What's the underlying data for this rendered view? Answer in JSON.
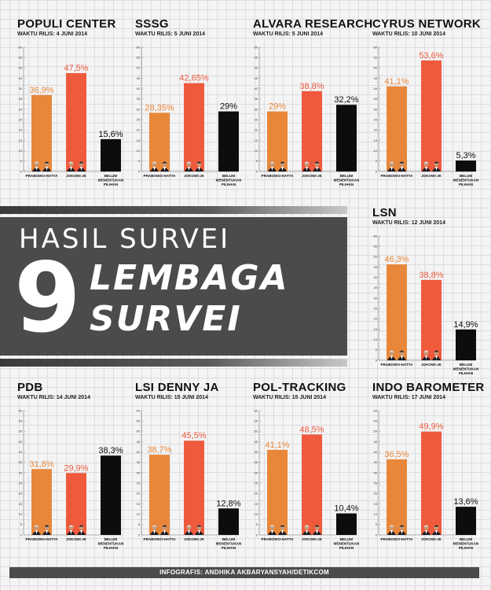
{
  "headline": {
    "line1": "HASIL SURVEI",
    "number": "9",
    "line2": "LEMBAGA",
    "line3": "SURVEI"
  },
  "footer": "INFOGRAFIS: ANDHIKA AKBARYANSYAH/DETIKCOM",
  "colors": {
    "prabowo": "#e8873a",
    "jokowi": "#ef5a3c",
    "undecided": "#0d0d0d",
    "label_prabowo": "#e8873a",
    "label_jokowi": "#ef5a3c",
    "banner": "#4b4b4b"
  },
  "icons": [
    "candidate-portrait-icon"
  ],
  "chart_data": [
    {
      "type": "bar",
      "title": "POPULI CENTER",
      "subtitle": "WAKTU RILIS: 4 JUNI 2014",
      "categories": [
        "PRABOWO-HATTA",
        "JOKOWI-JK",
        "BELUM MENENTUKAN PILIHAN"
      ],
      "values": [
        36.9,
        47.5,
        15.6
      ],
      "labels": [
        "36,9%",
        "47,5%",
        "15,6%"
      ],
      "ylim": [
        0,
        60
      ],
      "yticks": [
        "0",
        "5",
        "10",
        "15",
        "20",
        "25",
        "30",
        "35",
        "40",
        "45",
        "50",
        "55",
        "60"
      ]
    },
    {
      "type": "bar",
      "title": "SSSG",
      "subtitle": "WAKTU RILIS: 5 JUNI 2014",
      "categories": [
        "PRABOWO-HATTA",
        "JOKOWI-JK",
        "BELUM MENENTUKAN PILIHAN"
      ],
      "values": [
        28.35,
        42.65,
        29
      ],
      "labels": [
        "28,35%",
        "42,65%",
        "29%"
      ],
      "ylim": [
        0,
        60
      ],
      "yticks": [
        "0",
        "5",
        "10",
        "15",
        "20",
        "25",
        "30",
        "35",
        "40",
        "45",
        "50",
        "55",
        "60"
      ]
    },
    {
      "type": "bar",
      "title": "ALVARA RESEARCH",
      "subtitle": "WAKTU RILIS: 5 JUNI 2014",
      "categories": [
        "PRABOWO-HATTA",
        "JOKOWI-JK",
        "BELUM MENENTUKAN PILIHAN"
      ],
      "values": [
        29,
        38.8,
        32.2
      ],
      "labels": [
        "29%",
        "38,8%",
        "32,2%"
      ],
      "ylim": [
        0,
        60
      ],
      "yticks": [
        "0",
        "5",
        "10",
        "15",
        "20",
        "25",
        "30",
        "35",
        "40",
        "45",
        "50",
        "55",
        "60"
      ]
    },
    {
      "type": "bar",
      "title": "CYRUS NETWORK",
      "subtitle": "WAKTU RILIS: 10 JUNI 2014",
      "categories": [
        "PRABOWO-HATTA",
        "JOKOWI-JK",
        "BELUM MENENTUKAN PILIHAN"
      ],
      "values": [
        41.1,
        53.6,
        5.3
      ],
      "labels": [
        "41,1%",
        "53,6%",
        "5,3%"
      ],
      "ylim": [
        0,
        60
      ],
      "yticks": [
        "0",
        "5",
        "10",
        "15",
        "20",
        "25",
        "30",
        "35",
        "40",
        "45",
        "50",
        "55",
        "60"
      ]
    },
    {
      "type": "bar",
      "title": "LSN",
      "subtitle": "WAKTU RILIS: 12 JUNI 2014",
      "categories": [
        "PRABOWO-HATTA",
        "JOKOWI-JK",
        "BELUM MENENTUKAN PILIHAN"
      ],
      "values": [
        46.3,
        38.8,
        14.9
      ],
      "labels": [
        "46,3%",
        "38,8%",
        "14,9%"
      ],
      "ylim": [
        0,
        60
      ],
      "yticks": [
        "0",
        "5",
        "10",
        "15",
        "20",
        "25",
        "30",
        "35",
        "40",
        "45",
        "50",
        "55",
        "60"
      ]
    },
    {
      "type": "bar",
      "title": "PDB",
      "subtitle": "WAKTU RILIS: 14 JUNI 2014",
      "categories": [
        "PRABOWO-HATTA",
        "JOKOWI-JK",
        "BELUM MENENTUKAN PILIHAN"
      ],
      "values": [
        31.8,
        29.9,
        38.3
      ],
      "labels": [
        "31,8%",
        "29,9%",
        "38,3%"
      ],
      "ylim": [
        0,
        60
      ],
      "yticks": [
        "0",
        "5",
        "10",
        "15",
        "20",
        "25",
        "30",
        "35",
        "40",
        "45",
        "50",
        "55",
        "60"
      ]
    },
    {
      "type": "bar",
      "title": "LSI DENNY JA",
      "subtitle": "WAKTU RILIS: 15 JUNI 2014",
      "categories": [
        "PRABOWO-HATTA",
        "JOKOWI-JK",
        "BELUM MENENTUKAN PILIHAN"
      ],
      "values": [
        38.7,
        45.5,
        12.8
      ],
      "labels": [
        "38,7%",
        "45,5%",
        "12,8%"
      ],
      "ylim": [
        0,
        60
      ],
      "yticks": [
        "0",
        "5",
        "10",
        "15",
        "20",
        "25",
        "30",
        "35",
        "40",
        "45",
        "50",
        "55",
        "60"
      ]
    },
    {
      "type": "bar",
      "title": "POL-TRACKING",
      "subtitle": "WAKTU RILIS: 15 JUNI 2014",
      "categories": [
        "PRABOWO-HATTA",
        "JOKOWI-JK",
        "BELUM MENENTUKAN PILIHAN"
      ],
      "values": [
        41.1,
        48.5,
        10.4
      ],
      "labels": [
        "41,1%",
        "48,5%",
        "10,4%"
      ],
      "ylim": [
        0,
        60
      ],
      "yticks": [
        "0",
        "5",
        "10",
        "15",
        "20",
        "25",
        "30",
        "35",
        "40",
        "45",
        "50",
        "55",
        "60"
      ]
    },
    {
      "type": "bar",
      "title": "INDO BAROMETER",
      "subtitle": "WAKTU RILIS: 17 JUNI 2014",
      "categories": [
        "PRABOWO-HATTA",
        "JOKOWI-JK",
        "BELUM MENENTUKAN PILIHAN"
      ],
      "values": [
        36.5,
        49.9,
        13.6
      ],
      "labels": [
        "36,5%",
        "49,9%",
        "13,6%"
      ],
      "ylim": [
        0,
        60
      ],
      "yticks": [
        "0",
        "5",
        "10",
        "15",
        "20",
        "25",
        "30",
        "35",
        "40",
        "45",
        "50",
        "55",
        "60"
      ]
    }
  ]
}
